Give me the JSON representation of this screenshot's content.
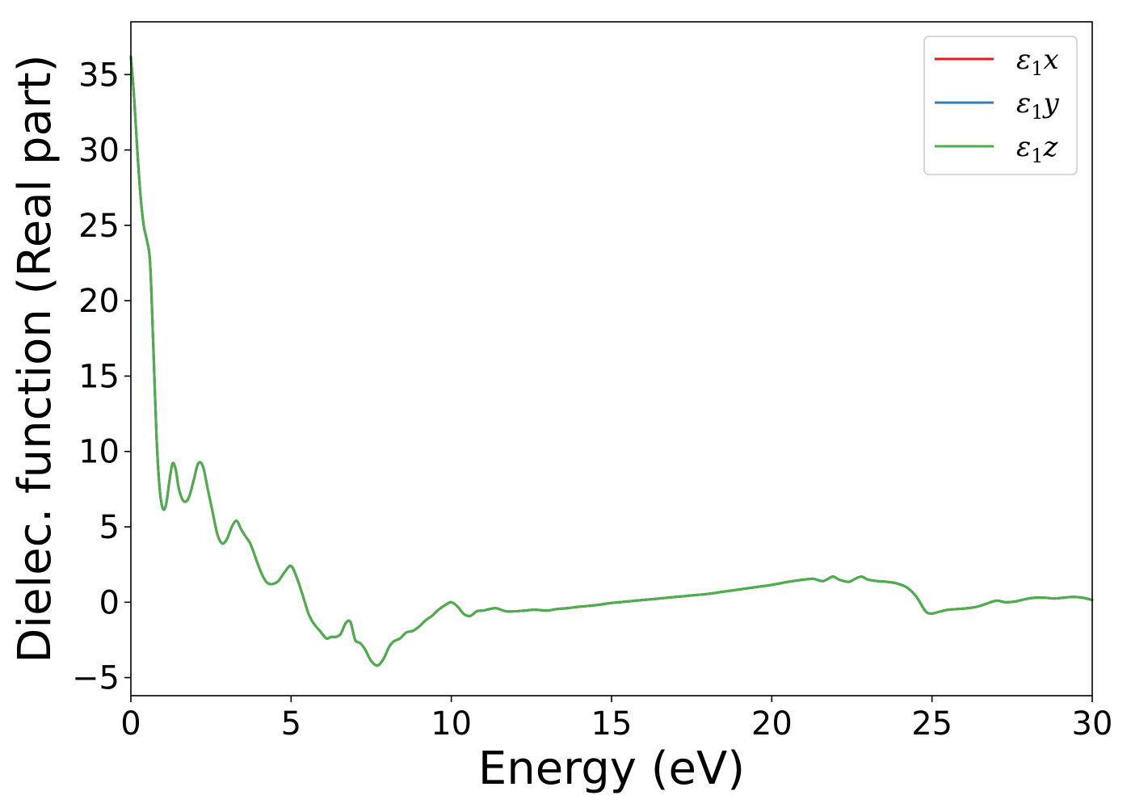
{
  "chart_data": {
    "type": "line",
    "xlabel": "Energy (eV)",
    "ylabel": "Dielec. function (Real part)",
    "xlim": [
      0,
      30
    ],
    "ylim": [
      -6.2,
      38.5
    ],
    "xticks": [
      0,
      5,
      10,
      15,
      20,
      25,
      30
    ],
    "yticks": [
      -5,
      0,
      5,
      10,
      15,
      20,
      25,
      30,
      35
    ],
    "xtick_labels": [
      "0",
      "5",
      "10",
      "15",
      "20",
      "25",
      "30"
    ],
    "ytick_labels": [
      "−5",
      "0",
      "5",
      "10",
      "15",
      "20",
      "25",
      "30",
      "35"
    ],
    "grid": false,
    "legend": "top-right",
    "series": [
      {
        "name": "ε1x",
        "color": "#e41a1c",
        "x": [
          0,
          0.1,
          0.2,
          0.3,
          0.4,
          0.5,
          0.6,
          0.7,
          0.8,
          0.9,
          1.0,
          1.1,
          1.2,
          1.3,
          1.4,
          1.5,
          1.65,
          1.8,
          1.95,
          2.1,
          2.25,
          2.4,
          2.55,
          2.7,
          2.85,
          3.0,
          3.15,
          3.3,
          3.45,
          3.6,
          3.7,
          3.8,
          3.95,
          4.1,
          4.25,
          4.4,
          4.6,
          4.8,
          5.0,
          5.2,
          5.4,
          5.55,
          5.7,
          5.9,
          6.1,
          6.25,
          6.4,
          6.55,
          6.7,
          6.85,
          7.0,
          7.15,
          7.3,
          7.5,
          7.7,
          7.9,
          8.05,
          8.2,
          8.4,
          8.6,
          8.8,
          9.0,
          9.2,
          9.4,
          9.6,
          9.8,
          10.0,
          10.2,
          10.4,
          10.6,
          10.8,
          11.0,
          11.2,
          11.4,
          11.7,
          12.0,
          12.3,
          12.6,
          13.0,
          13.3,
          13.6,
          14.0,
          14.5,
          15.0,
          15.5,
          16.0,
          16.5,
          17.0,
          17.5,
          18.0,
          18.5,
          19.0,
          19.5,
          20.0,
          20.5,
          21.0,
          21.3,
          21.6,
          21.9,
          22.1,
          22.4,
          22.6,
          22.8,
          23.0,
          23.3,
          23.6,
          23.9,
          24.2,
          24.5,
          24.8,
          25.0,
          25.2,
          25.5,
          25.8,
          26.1,
          26.4,
          26.7,
          27.0,
          27.3,
          27.6,
          27.9,
          28.2,
          28.5,
          28.8,
          29.1,
          29.4,
          29.7,
          30.0
        ],
        "y": [
          36.2,
          33.5,
          30.0,
          27.0,
          25.0,
          24.0,
          22.5,
          17.0,
          11.0,
          7.5,
          6.2,
          6.5,
          8.0,
          9.2,
          8.8,
          7.5,
          6.7,
          6.9,
          8.0,
          9.2,
          9.0,
          7.5,
          6.0,
          4.5,
          3.9,
          4.2,
          5.0,
          5.4,
          4.8,
          4.3,
          4.0,
          3.5,
          2.6,
          1.8,
          1.3,
          1.2,
          1.4,
          2.0,
          2.4,
          1.5,
          0.2,
          -0.8,
          -1.4,
          -1.9,
          -2.4,
          -2.3,
          -2.3,
          -2.1,
          -1.4,
          -1.3,
          -2.5,
          -2.7,
          -3.1,
          -3.9,
          -4.2,
          -3.7,
          -3.0,
          -2.6,
          -2.4,
          -2.0,
          -1.9,
          -1.6,
          -1.2,
          -0.9,
          -0.5,
          -0.2,
          0.0,
          -0.3,
          -0.8,
          -0.9,
          -0.6,
          -0.55,
          -0.45,
          -0.4,
          -0.6,
          -0.6,
          -0.55,
          -0.5,
          -0.55,
          -0.45,
          -0.4,
          -0.3,
          -0.2,
          -0.05,
          0.05,
          0.15,
          0.25,
          0.35,
          0.45,
          0.55,
          0.7,
          0.85,
          1.0,
          1.15,
          1.35,
          1.5,
          1.55,
          1.4,
          1.7,
          1.5,
          1.35,
          1.55,
          1.7,
          1.5,
          1.4,
          1.35,
          1.25,
          1.0,
          0.4,
          -0.6,
          -0.75,
          -0.65,
          -0.5,
          -0.45,
          -0.4,
          -0.3,
          -0.1,
          0.1,
          0.0,
          0.05,
          0.2,
          0.3,
          0.3,
          0.25,
          0.3,
          0.35,
          0.3,
          0.15
        ]
      },
      {
        "name": "ε1y",
        "color": "#377eb8",
        "x": [
          0,
          0.1,
          0.2,
          0.3,
          0.4,
          0.5,
          0.6,
          0.7,
          0.8,
          0.9,
          1.0,
          1.1,
          1.2,
          1.3,
          1.4,
          1.5,
          1.65,
          1.8,
          1.95,
          2.1,
          2.25,
          2.4,
          2.55,
          2.7,
          2.85,
          3.0,
          3.15,
          3.3,
          3.45,
          3.6,
          3.7,
          3.8,
          3.95,
          4.1,
          4.25,
          4.4,
          4.6,
          4.8,
          5.0,
          5.2,
          5.4,
          5.55,
          5.7,
          5.9,
          6.1,
          6.25,
          6.4,
          6.55,
          6.7,
          6.85,
          7.0,
          7.15,
          7.3,
          7.5,
          7.7,
          7.9,
          8.05,
          8.2,
          8.4,
          8.6,
          8.8,
          9.0,
          9.2,
          9.4,
          9.6,
          9.8,
          10.0,
          10.2,
          10.4,
          10.6,
          10.8,
          11.0,
          11.2,
          11.4,
          11.7,
          12.0,
          12.3,
          12.6,
          13.0,
          13.3,
          13.6,
          14.0,
          14.5,
          15.0,
          15.5,
          16.0,
          16.5,
          17.0,
          17.5,
          18.0,
          18.5,
          19.0,
          19.5,
          20.0,
          20.5,
          21.0,
          21.3,
          21.6,
          21.9,
          22.1,
          22.4,
          22.6,
          22.8,
          23.0,
          23.3,
          23.6,
          23.9,
          24.2,
          24.5,
          24.8,
          25.0,
          25.2,
          25.5,
          25.8,
          26.1,
          26.4,
          26.7,
          27.0,
          27.3,
          27.6,
          27.9,
          28.2,
          28.5,
          28.8,
          29.1,
          29.4,
          29.7,
          30.0
        ],
        "y": [
          36.2,
          33.5,
          30.0,
          27.0,
          25.0,
          24.0,
          22.5,
          17.0,
          11.0,
          7.5,
          6.2,
          6.5,
          8.0,
          9.2,
          8.8,
          7.5,
          6.7,
          6.9,
          8.0,
          9.2,
          9.0,
          7.5,
          6.0,
          4.5,
          3.9,
          4.2,
          5.0,
          5.4,
          4.8,
          4.3,
          4.0,
          3.5,
          2.6,
          1.8,
          1.3,
          1.2,
          1.4,
          2.0,
          2.4,
          1.5,
          0.2,
          -0.8,
          -1.4,
          -1.9,
          -2.4,
          -2.3,
          -2.3,
          -2.1,
          -1.4,
          -1.3,
          -2.5,
          -2.7,
          -3.1,
          -3.9,
          -4.2,
          -3.7,
          -3.0,
          -2.6,
          -2.4,
          -2.0,
          -1.9,
          -1.6,
          -1.2,
          -0.9,
          -0.5,
          -0.2,
          0.0,
          -0.3,
          -0.8,
          -0.9,
          -0.6,
          -0.55,
          -0.45,
          -0.4,
          -0.6,
          -0.6,
          -0.55,
          -0.5,
          -0.55,
          -0.45,
          -0.4,
          -0.3,
          -0.2,
          -0.05,
          0.05,
          0.15,
          0.25,
          0.35,
          0.45,
          0.55,
          0.7,
          0.85,
          1.0,
          1.15,
          1.35,
          1.5,
          1.55,
          1.4,
          1.7,
          1.5,
          1.35,
          1.55,
          1.7,
          1.5,
          1.4,
          1.35,
          1.25,
          1.0,
          0.4,
          -0.6,
          -0.75,
          -0.65,
          -0.5,
          -0.45,
          -0.4,
          -0.3,
          -0.1,
          0.1,
          0.0,
          0.05,
          0.2,
          0.3,
          0.3,
          0.25,
          0.3,
          0.35,
          0.3,
          0.15
        ]
      },
      {
        "name": "ε1z",
        "color": "#4daf4a",
        "x": [
          0,
          0.1,
          0.2,
          0.3,
          0.4,
          0.5,
          0.6,
          0.7,
          0.8,
          0.9,
          1.0,
          1.1,
          1.2,
          1.3,
          1.4,
          1.5,
          1.65,
          1.8,
          1.95,
          2.1,
          2.25,
          2.4,
          2.55,
          2.7,
          2.85,
          3.0,
          3.15,
          3.3,
          3.45,
          3.6,
          3.7,
          3.8,
          3.95,
          4.1,
          4.25,
          4.4,
          4.6,
          4.8,
          5.0,
          5.2,
          5.4,
          5.55,
          5.7,
          5.9,
          6.1,
          6.25,
          6.4,
          6.55,
          6.7,
          6.85,
          7.0,
          7.15,
          7.3,
          7.5,
          7.7,
          7.9,
          8.05,
          8.2,
          8.4,
          8.6,
          8.8,
          9.0,
          9.2,
          9.4,
          9.6,
          9.8,
          10.0,
          10.2,
          10.4,
          10.6,
          10.8,
          11.0,
          11.2,
          11.4,
          11.7,
          12.0,
          12.3,
          12.6,
          13.0,
          13.3,
          13.6,
          14.0,
          14.5,
          15.0,
          15.5,
          16.0,
          16.5,
          17.0,
          17.5,
          18.0,
          18.5,
          19.0,
          19.5,
          20.0,
          20.5,
          21.0,
          21.3,
          21.6,
          21.9,
          22.1,
          22.4,
          22.6,
          22.8,
          23.0,
          23.3,
          23.6,
          23.9,
          24.2,
          24.5,
          24.8,
          25.0,
          25.2,
          25.5,
          25.8,
          26.1,
          26.4,
          26.7,
          27.0,
          27.3,
          27.6,
          27.9,
          28.2,
          28.5,
          28.8,
          29.1,
          29.4,
          29.7,
          30.0
        ],
        "y": [
          36.2,
          33.5,
          30.0,
          27.0,
          25.0,
          24.0,
          22.5,
          17.0,
          11.0,
          7.5,
          6.2,
          6.5,
          8.0,
          9.2,
          8.8,
          7.5,
          6.7,
          6.9,
          8.0,
          9.2,
          9.0,
          7.5,
          6.0,
          4.5,
          3.9,
          4.2,
          5.0,
          5.4,
          4.8,
          4.3,
          4.0,
          3.5,
          2.6,
          1.8,
          1.3,
          1.2,
          1.4,
          2.0,
          2.4,
          1.5,
          0.2,
          -0.8,
          -1.4,
          -1.9,
          -2.4,
          -2.3,
          -2.3,
          -2.1,
          -1.4,
          -1.3,
          -2.5,
          -2.7,
          -3.1,
          -3.9,
          -4.2,
          -3.7,
          -3.0,
          -2.6,
          -2.4,
          -2.0,
          -1.9,
          -1.6,
          -1.2,
          -0.9,
          -0.5,
          -0.2,
          0.0,
          -0.3,
          -0.8,
          -0.9,
          -0.6,
          -0.55,
          -0.45,
          -0.4,
          -0.6,
          -0.6,
          -0.55,
          -0.5,
          -0.55,
          -0.45,
          -0.4,
          -0.3,
          -0.2,
          -0.05,
          0.05,
          0.15,
          0.25,
          0.35,
          0.45,
          0.55,
          0.7,
          0.85,
          1.0,
          1.15,
          1.35,
          1.5,
          1.55,
          1.4,
          1.7,
          1.5,
          1.35,
          1.55,
          1.7,
          1.5,
          1.4,
          1.35,
          1.25,
          1.0,
          0.4,
          -0.6,
          -0.75,
          -0.65,
          -0.5,
          -0.45,
          -0.4,
          -0.3,
          -0.1,
          0.1,
          0.0,
          0.05,
          0.2,
          0.3,
          0.3,
          0.25,
          0.3,
          0.35,
          0.3,
          0.15
        ]
      }
    ]
  }
}
